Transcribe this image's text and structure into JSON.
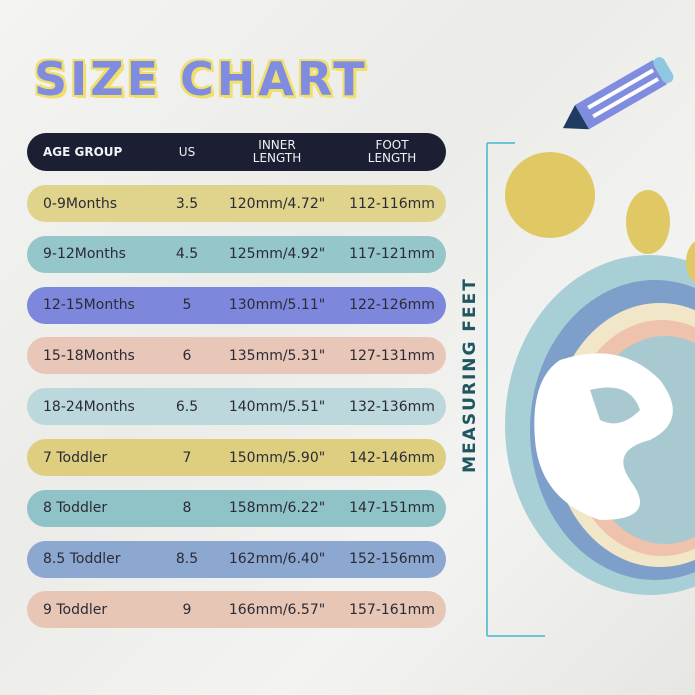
{
  "title": "SIZE CHART",
  "side_label": "MEASURING FEET",
  "table": {
    "headers": [
      "AGE GROUP",
      "US",
      "INNER LENGTH",
      "FOOT LENGTH"
    ],
    "header_color": "#1c1f33",
    "rows": [
      {
        "age": "0-9Months",
        "us": "3.5",
        "inner": "120mm/4.72\"",
        "foot": "112-116mm",
        "color": "#e0d38b"
      },
      {
        "age": "9-12Months",
        "us": "4.5",
        "inner": "125mm/4.92\"",
        "foot": "117-121mm",
        "color": "#94c6ca"
      },
      {
        "age": "12-15Months",
        "us": "5",
        "inner": "130mm/5.11\"",
        "foot": "122-126mm",
        "color": "#7d88dc"
      },
      {
        "age": "15-18Months",
        "us": "6",
        "inner": "135mm/5.31\"",
        "foot": "127-131mm",
        "color": "#e8c7b8"
      },
      {
        "age": "18-24Months",
        "us": "6.5",
        "inner": "140mm/5.51\"",
        "foot": "132-136mm",
        "color": "#bcd8dc"
      },
      {
        "age": "7 Toddler",
        "us": "7",
        "inner": "150mm/5.90\"",
        "foot": "142-146mm",
        "color": "#ddcf7f"
      },
      {
        "age": "8 Toddler",
        "us": "8",
        "inner": "158mm/6.22\"",
        "foot": "147-151mm",
        "color": "#90c3c8"
      },
      {
        "age": "8.5 Toddler",
        "us": "8.5",
        "inner": "162mm/6.40\"",
        "foot": "152-156mm",
        "color": "#8ca7d0"
      },
      {
        "age": "9 Toddler",
        "us": "9",
        "inner": "166mm/6.57\"",
        "foot": "157-161mm",
        "color": "#e7c6b5"
      }
    ]
  }
}
